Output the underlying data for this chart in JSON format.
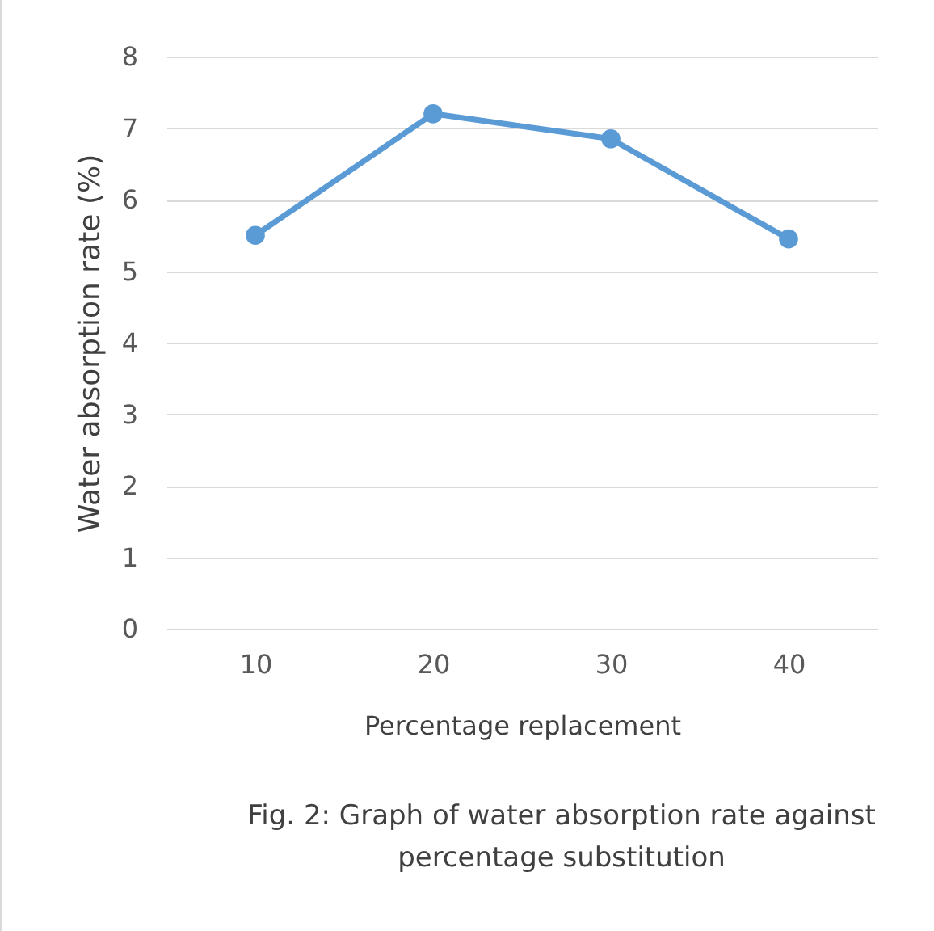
{
  "chart_data": {
    "type": "line",
    "xlabel": "Percentage replacement",
    "ylabel": "Water absorption rate (%)",
    "categories": [
      "10",
      "20",
      "30",
      "40"
    ],
    "series": [
      {
        "color": "#5b9bd5",
        "values": [
          5.5,
          7.2,
          6.85,
          5.45
        ]
      }
    ],
    "ylim": [
      0,
      8
    ],
    "yticks": [
      0,
      1,
      2,
      3,
      4,
      5,
      6,
      7,
      8
    ],
    "grid": "y",
    "marker": "circle",
    "line_style": "solid",
    "legend": false,
    "annotations": [
      "Fig. 2: Graph of water absorption rate against percentage substitution"
    ]
  }
}
